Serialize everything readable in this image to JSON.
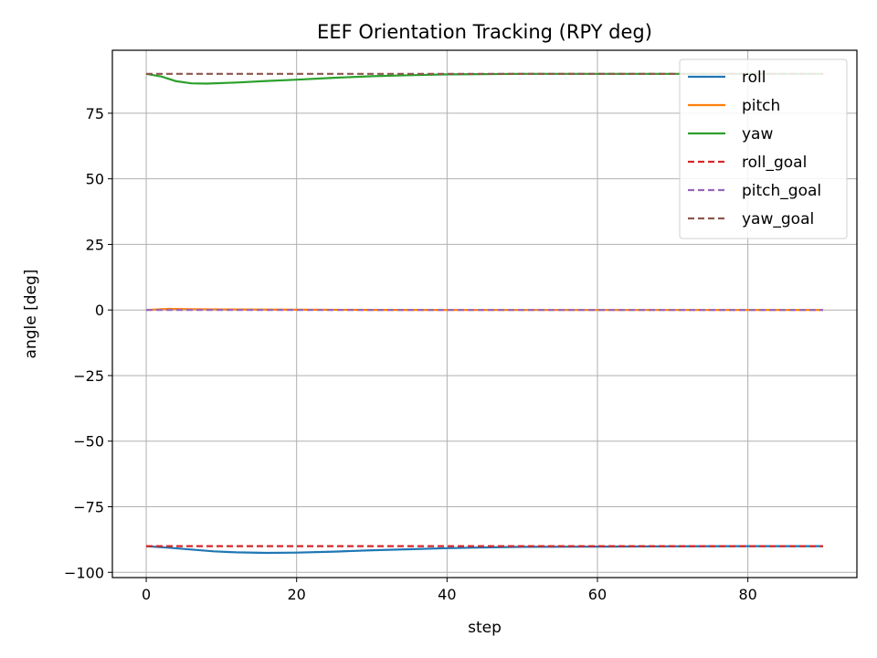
{
  "chart_data": {
    "type": "line",
    "title": "EEF Orientation Tracking (RPY deg)",
    "xlabel": "step",
    "ylabel": "angle [deg]",
    "xlim": [
      -4.5,
      94.5
    ],
    "ylim": [
      -102,
      99
    ],
    "xticks": [
      0,
      20,
      40,
      60,
      80
    ],
    "yticks": [
      -100,
      -75,
      -50,
      -25,
      0,
      25,
      50,
      75
    ],
    "xtick_labels": [
      "0",
      "20",
      "40",
      "60",
      "80"
    ],
    "ytick_labels": [
      "−100",
      "−75",
      "−50",
      "−25",
      "0",
      "25",
      "50",
      "75"
    ],
    "grid": true,
    "legend_position": "top-right",
    "series": [
      {
        "name": "roll",
        "color": "#1f77b4",
        "style": "solid",
        "points": [
          [
            0,
            -90
          ],
          [
            3,
            -90.6
          ],
          [
            6,
            -91.3
          ],
          [
            9,
            -92
          ],
          [
            12,
            -92.4
          ],
          [
            16,
            -92.6
          ],
          [
            20,
            -92.5
          ],
          [
            25,
            -92.1
          ],
          [
            30,
            -91.6
          ],
          [
            35,
            -91.2
          ],
          [
            40,
            -90.8
          ],
          [
            45,
            -90.5
          ],
          [
            50,
            -90.3
          ],
          [
            60,
            -90.2
          ],
          [
            70,
            -90.1
          ],
          [
            80,
            -90.0
          ],
          [
            90,
            -90.0
          ]
        ]
      },
      {
        "name": "pitch",
        "color": "#ff7f0e",
        "style": "solid",
        "points": [
          [
            0,
            0
          ],
          [
            3,
            0.4
          ],
          [
            6,
            0.3
          ],
          [
            10,
            0.2
          ],
          [
            20,
            0.1
          ],
          [
            30,
            0.05
          ],
          [
            40,
            0.0
          ],
          [
            60,
            0.0
          ],
          [
            90,
            0.0
          ]
        ]
      },
      {
        "name": "yaw",
        "color": "#2ca02c",
        "style": "solid",
        "points": [
          [
            0,
            90
          ],
          [
            2,
            89
          ],
          [
            4,
            87.2
          ],
          [
            6,
            86.4
          ],
          [
            8,
            86.3
          ],
          [
            12,
            86.7
          ],
          [
            16,
            87.3
          ],
          [
            20,
            87.8
          ],
          [
            25,
            88.5
          ],
          [
            30,
            89.1
          ],
          [
            35,
            89.5
          ],
          [
            40,
            89.8
          ],
          [
            50,
            90
          ],
          [
            60,
            90
          ],
          [
            90,
            90
          ]
        ]
      },
      {
        "name": "roll_goal",
        "color": "#d62728",
        "style": "dashed",
        "points": [
          [
            0,
            -90
          ],
          [
            90,
            -90
          ]
        ]
      },
      {
        "name": "pitch_goal",
        "color": "#9467bd",
        "style": "dashed",
        "points": [
          [
            0,
            0
          ],
          [
            90,
            0
          ]
        ]
      },
      {
        "name": "yaw_goal",
        "color": "#8c564b",
        "style": "dashed",
        "points": [
          [
            0,
            90
          ],
          [
            90,
            90
          ]
        ]
      }
    ]
  }
}
